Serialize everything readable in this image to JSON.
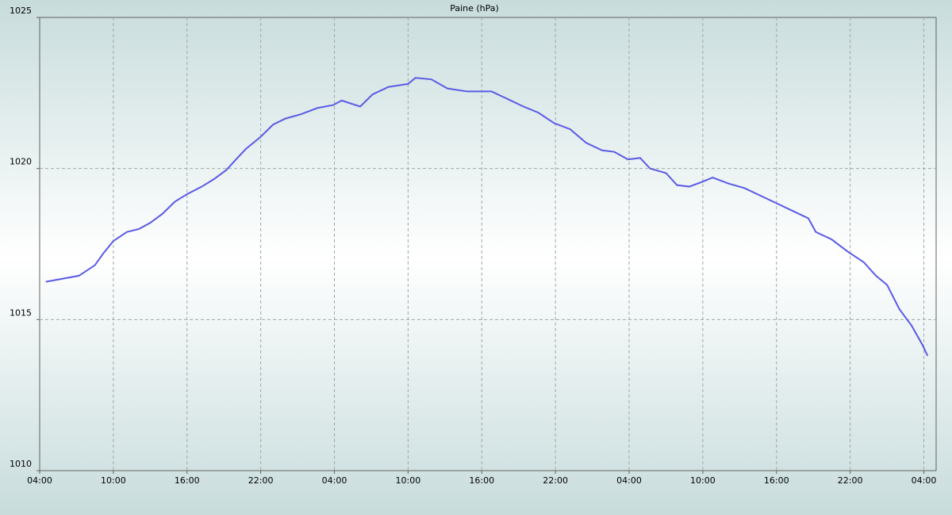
{
  "chart_data": {
    "type": "line",
    "title": "Paine (hPa)",
    "x": [
      0.5,
      3.2,
      4.5,
      5.2,
      6,
      7.1,
      8.1,
      9,
      10,
      11,
      12,
      13.2,
      14.2,
      15.2,
      16.1,
      16.8,
      18,
      19,
      20,
      21.3,
      22.6,
      23.9,
      24.6,
      26.1,
      27.1,
      28.4,
      30,
      30.6,
      31.9,
      33.2,
      34.8,
      36.8,
      38.1,
      39.4,
      40.6,
      41.9,
      43.2,
      44.5,
      45.8,
      46.8,
      47.9,
      48.9,
      49.7,
      51,
      51.9,
      52.9,
      53.9,
      54.8,
      56.1,
      57.4,
      58.7,
      60,
      61.3,
      62.6,
      63.2,
      64.5,
      65.8,
      67.1,
      68.1,
      69,
      70,
      71,
      71.9,
      72.3
    ],
    "series": [
      {
        "color": "#5a5ae6",
        "values": [
          1016.25,
          1016.45,
          1016.8,
          1017.2,
          1017.6,
          1017.9,
          1018,
          1018.2,
          1018.5,
          1018.9,
          1019.15,
          1019.4,
          1019.65,
          1019.95,
          1020.35,
          1020.65,
          1021.05,
          1021.45,
          1021.65,
          1021.8,
          1022,
          1022.1,
          1022.25,
          1022.05,
          1022.45,
          1022.7,
          1022.8,
          1023,
          1022.95,
          1022.65,
          1022.55,
          1022.55,
          1022.3,
          1022.05,
          1021.85,
          1021.5,
          1021.3,
          1020.85,
          1020.6,
          1020.55,
          1020.3,
          1020.35,
          1020,
          1019.85,
          1019.45,
          1019.4,
          1019.55,
          1019.7,
          1019.5,
          1019.35,
          1019.1,
          1018.85,
          1018.6,
          1018.35,
          1017.9,
          1017.65,
          1017.25,
          1016.9,
          1016.45,
          1016.15,
          1015.35,
          1014.8,
          1014.15,
          1013.8
        ]
      }
    ],
    "xlim": [
      0,
      73
    ],
    "xticks": [
      {
        "value": 0,
        "label": "04:00"
      },
      {
        "value": 6,
        "label": "10:00"
      },
      {
        "value": 12,
        "label": "16:00"
      },
      {
        "value": 18,
        "label": "22:00"
      },
      {
        "value": 24,
        "label": "04:00"
      },
      {
        "value": 30,
        "label": "10:00"
      },
      {
        "value": 36,
        "label": "16:00"
      },
      {
        "value": 42,
        "label": "22:00"
      },
      {
        "value": 48,
        "label": "04:00"
      },
      {
        "value": 54,
        "label": "10:00"
      },
      {
        "value": 60,
        "label": "16:00"
      },
      {
        "value": 66,
        "label": "22:00"
      },
      {
        "value": 72,
        "label": "04:00"
      }
    ],
    "ylim": [
      1010,
      1025
    ],
    "yticks": [
      1010,
      1015,
      1020,
      1025
    ],
    "grid": true
  }
}
